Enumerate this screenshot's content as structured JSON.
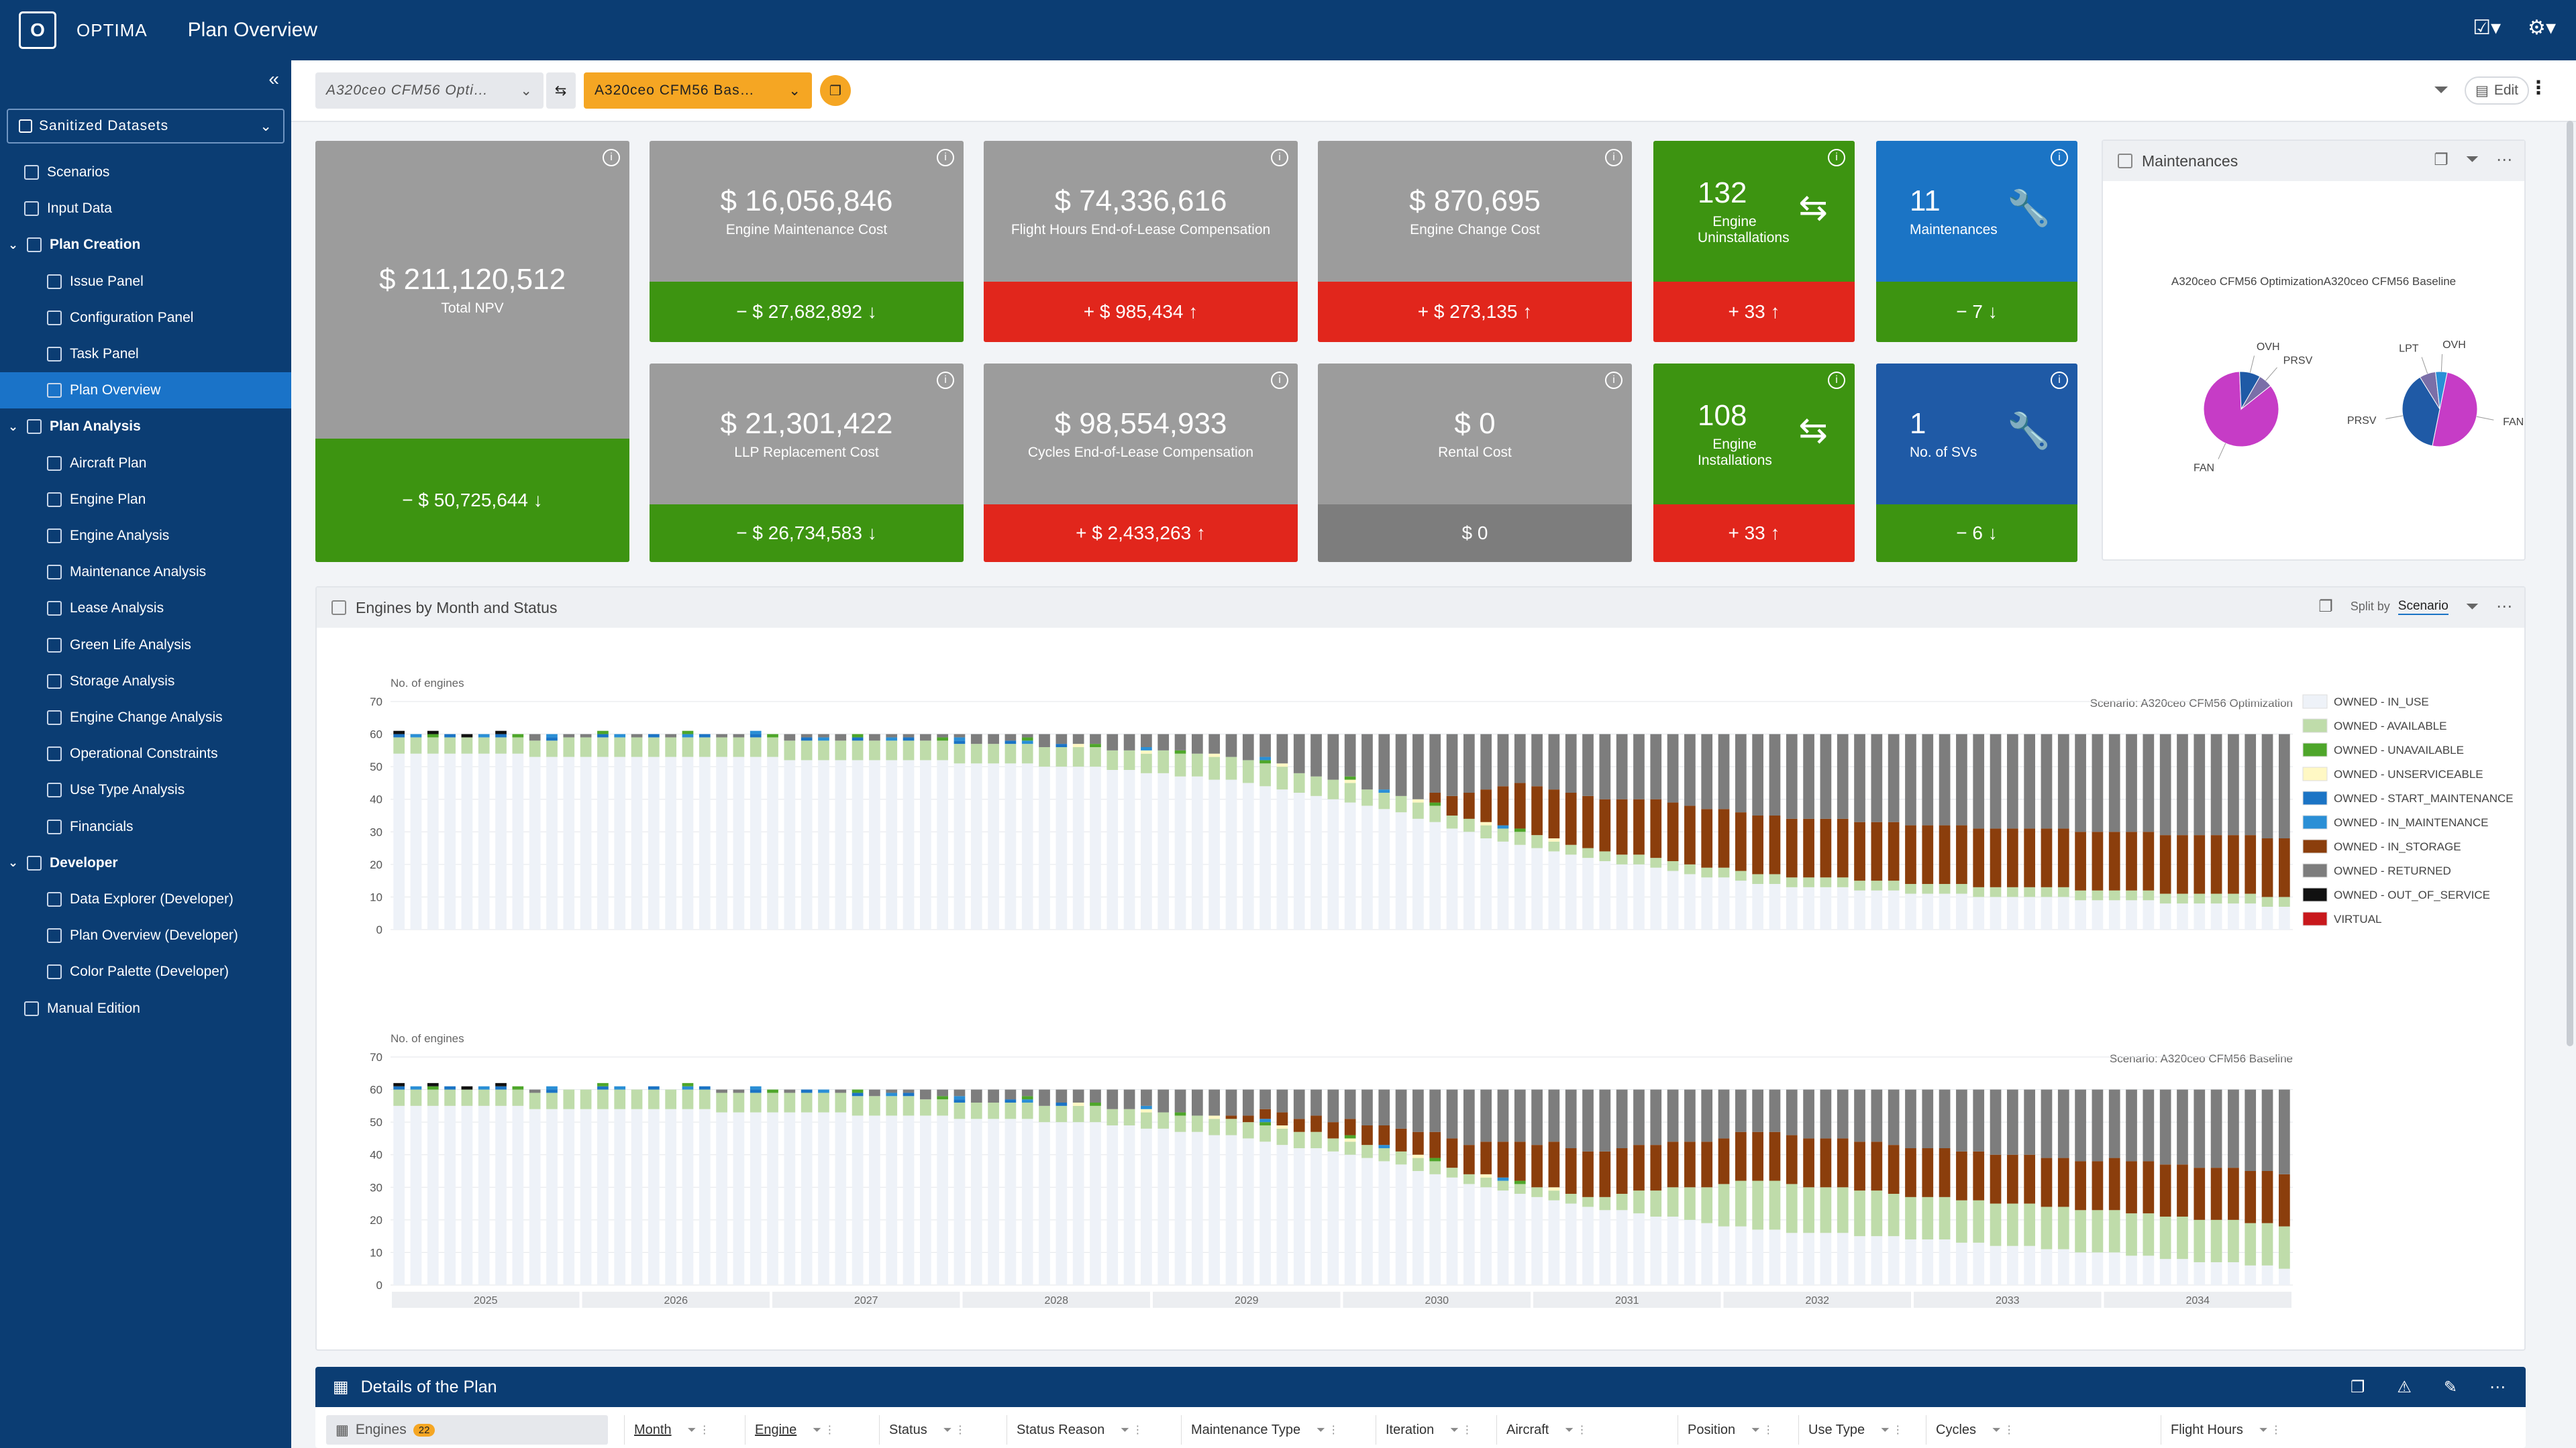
{
  "app": {
    "name": "OPTIMA",
    "page_title": "Plan Overview"
  },
  "sidebar": {
    "dataset": "Sanitized Datasets",
    "items": [
      {
        "label": "Scenarios",
        "level": 0
      },
      {
        "label": "Input Data",
        "level": 0
      },
      {
        "label": "Plan Creation",
        "level": "group"
      },
      {
        "label": "Issue Panel",
        "level": 1
      },
      {
        "label": "Configuration Panel",
        "level": 1
      },
      {
        "label": "Task Panel",
        "level": 1
      },
      {
        "label": "Plan Overview",
        "level": 1,
        "active": true
      },
      {
        "label": "Plan Analysis",
        "level": "group"
      },
      {
        "label": "Aircraft Plan",
        "level": 1
      },
      {
        "label": "Engine Plan",
        "level": 1
      },
      {
        "label": "Engine Analysis",
        "level": 1
      },
      {
        "label": "Maintenance Analysis",
        "level": 1
      },
      {
        "label": "Lease Analysis",
        "level": 1
      },
      {
        "label": "Green Life Analysis",
        "level": 1
      },
      {
        "label": "Storage Analysis",
        "level": 1
      },
      {
        "label": "Engine Change Analysis",
        "level": 1
      },
      {
        "label": "Operational Constraints",
        "level": 1
      },
      {
        "label": "Use Type Analysis",
        "level": 1
      },
      {
        "label": "Financials",
        "level": 1
      },
      {
        "label": "Developer",
        "level": "group"
      },
      {
        "label": "Data Explorer (Developer)",
        "level": 1
      },
      {
        "label": "Plan Overview (Developer)",
        "level": 1
      },
      {
        "label": "Color Palette (Developer)",
        "level": 1
      },
      {
        "label": "Manual Edition",
        "level": 0
      }
    ]
  },
  "filterbar": {
    "scenario_a": "A320ceo CFM56 Opti…",
    "scenario_b": "A320ceo CFM56 Bas…",
    "edit_label": "Edit"
  },
  "kpis": {
    "npv": {
      "value": "$ 211,120,512",
      "label": "Total NPV",
      "delta": "− $ 50,725,644 ↓"
    },
    "eng_maint": {
      "value": "$ 16,056,846",
      "label": "Engine Maintenance Cost",
      "delta": "− $ 27,682,892 ↓"
    },
    "fh_eol": {
      "value": "$ 74,336,616",
      "label": "Flight Hours End-of-Lease Compensation",
      "delta": "+ $ 985,434 ↑"
    },
    "eng_change": {
      "value": "$ 870,695",
      "label": "Engine Change Cost",
      "delta": "+ $ 273,135 ↑"
    },
    "uninstall": {
      "value": "132",
      "label": "Engine Uninstallations",
      "delta": "+ 33 ↑"
    },
    "maint": {
      "value": "11",
      "label": "Maintenances",
      "delta": "− 7 ↓"
    },
    "llp": {
      "value": "$ 21,301,422",
      "label": "LLP Replacement Cost",
      "delta": "− $ 26,734,583 ↓"
    },
    "cy_eol": {
      "value": "$ 98,554,933",
      "label": "Cycles End-of-Lease Compensation",
      "delta": "+ $ 2,433,263 ↑"
    },
    "rental": {
      "value": "$ 0",
      "label": "Rental Cost",
      "delta": "$ 0"
    },
    "install": {
      "value": "108",
      "label": "Engine Installations",
      "delta": "+ 33 ↑"
    },
    "svs": {
      "value": "1",
      "label": "No. of SVs",
      "delta": "− 6 ↓"
    }
  },
  "maintenances_panel": {
    "title": "Maintenances",
    "subtitle": "A320ceo CFM56 OptimizationA320ceo CFM56 Baseline",
    "pies": [
      {
        "slices": [
          {
            "label": "FAN",
            "value": 0.85,
            "color": "#c63cc6"
          },
          {
            "label": "OVH",
            "value": 0.09,
            "color": "#1f5aa6"
          },
          {
            "label": "PRSV",
            "value": 0.06,
            "color": "#7a6fa8"
          }
        ]
      },
      {
        "slices": [
          {
            "label": "FAN",
            "value": 0.5,
            "color": "#c63cc6"
          },
          {
            "label": "PRSV",
            "value": 0.38,
            "color": "#1f5aa6"
          },
          {
            "label": "LPT",
            "value": 0.07,
            "color": "#7a6fa8"
          },
          {
            "label": "OVH",
            "value": 0.05,
            "color": "#2a8fd6"
          }
        ]
      }
    ]
  },
  "engines_panel": {
    "title": "Engines by Month and Status",
    "split_label": "Split by",
    "split_value": "Scenario"
  },
  "chart_data": {
    "type": "bar",
    "stacked": true,
    "ylabel": "No. of engines",
    "ylim": [
      0,
      70
    ],
    "yticks": [
      0,
      10,
      20,
      30,
      40,
      50,
      60,
      70
    ],
    "x_years": [
      "2025",
      "2026",
      "2027",
      "2028",
      "2029",
      "2030",
      "2031",
      "2032",
      "2033",
      "2034"
    ],
    "months_total": 112,
    "legend": [
      {
        "name": "OWNED - IN_USE",
        "color": "#eef2f8"
      },
      {
        "name": "OWNED - AVAILABLE",
        "color": "#bfdcaa"
      },
      {
        "name": "OWNED - UNAVAILABLE",
        "color": "#4ea62a"
      },
      {
        "name": "OWNED - UNSERVICEABLE",
        "color": "#fff8c4"
      },
      {
        "name": "OWNED - START_MAINTENANCE",
        "color": "#1b74c5"
      },
      {
        "name": "OWNED - IN_MAINTENANCE",
        "color": "#2a8fd6"
      },
      {
        "name": "OWNED - IN_STORAGE",
        "color": "#8b3e0c"
      },
      {
        "name": "OWNED - RETURNED",
        "color": "#7d7d7d"
      },
      {
        "name": "OWNED - OUT_OF_SERVICE",
        "color": "#111111"
      },
      {
        "name": "VIRTUAL",
        "color": "#c8181c"
      }
    ],
    "panels": [
      {
        "scenario_label": "Scenario: A320ceo CFM56 Optimization",
        "in_use_knots": [
          [
            0,
            54
          ],
          [
            15,
            53
          ],
          [
            30,
            52
          ],
          [
            40,
            50
          ],
          [
            50,
            45
          ],
          [
            58,
            37
          ],
          [
            64,
            28
          ],
          [
            70,
            22
          ],
          [
            80,
            14
          ],
          [
            90,
            11
          ],
          [
            112,
            7
          ]
        ],
        "available_knots": [
          [
            0,
            5
          ],
          [
            20,
            6
          ],
          [
            40,
            6
          ],
          [
            50,
            7
          ],
          [
            58,
            5
          ],
          [
            64,
            4
          ],
          [
            70,
            3
          ],
          [
            80,
            3
          ],
          [
            112,
            3
          ]
        ],
        "storage_knots": [
          [
            0,
            0
          ],
          [
            60,
            0
          ],
          [
            62,
            6
          ],
          [
            64,
            10
          ],
          [
            66,
            14
          ],
          [
            70,
            16
          ],
          [
            75,
            18
          ],
          [
            112,
            18
          ]
        ],
        "total": 60
      },
      {
        "scenario_label": "Scenario: A320ceo CFM56 Baseline",
        "in_use_knots": [
          [
            0,
            55
          ],
          [
            15,
            54
          ],
          [
            30,
            52
          ],
          [
            40,
            50
          ],
          [
            50,
            45
          ],
          [
            58,
            38
          ],
          [
            64,
            30
          ],
          [
            70,
            24
          ],
          [
            80,
            17
          ],
          [
            90,
            14
          ],
          [
            112,
            5
          ]
        ],
        "available_knots": [
          [
            0,
            5
          ],
          [
            20,
            6
          ],
          [
            40,
            5
          ],
          [
            50,
            5
          ],
          [
            58,
            4
          ],
          [
            64,
            3
          ],
          [
            70,
            3
          ],
          [
            80,
            15
          ],
          [
            90,
            13
          ],
          [
            112,
            13
          ]
        ],
        "storage_knots": [
          [
            0,
            0
          ],
          [
            48,
            0
          ],
          [
            52,
            4
          ],
          [
            56,
            5
          ],
          [
            60,
            7
          ],
          [
            64,
            10
          ],
          [
            68,
            14
          ],
          [
            112,
            16
          ]
        ],
        "total": 60
      }
    ]
  },
  "details_panel": {
    "title": "Details of the Plan",
    "tab_label": "Engines",
    "tab_count": "22",
    "columns": [
      "Month",
      "Engine",
      "Status",
      "Status Reason",
      "Maintenance Type",
      "Iteration",
      "Aircraft",
      "Position",
      "Use Type",
      "Cycles",
      "Flight Hours"
    ]
  }
}
